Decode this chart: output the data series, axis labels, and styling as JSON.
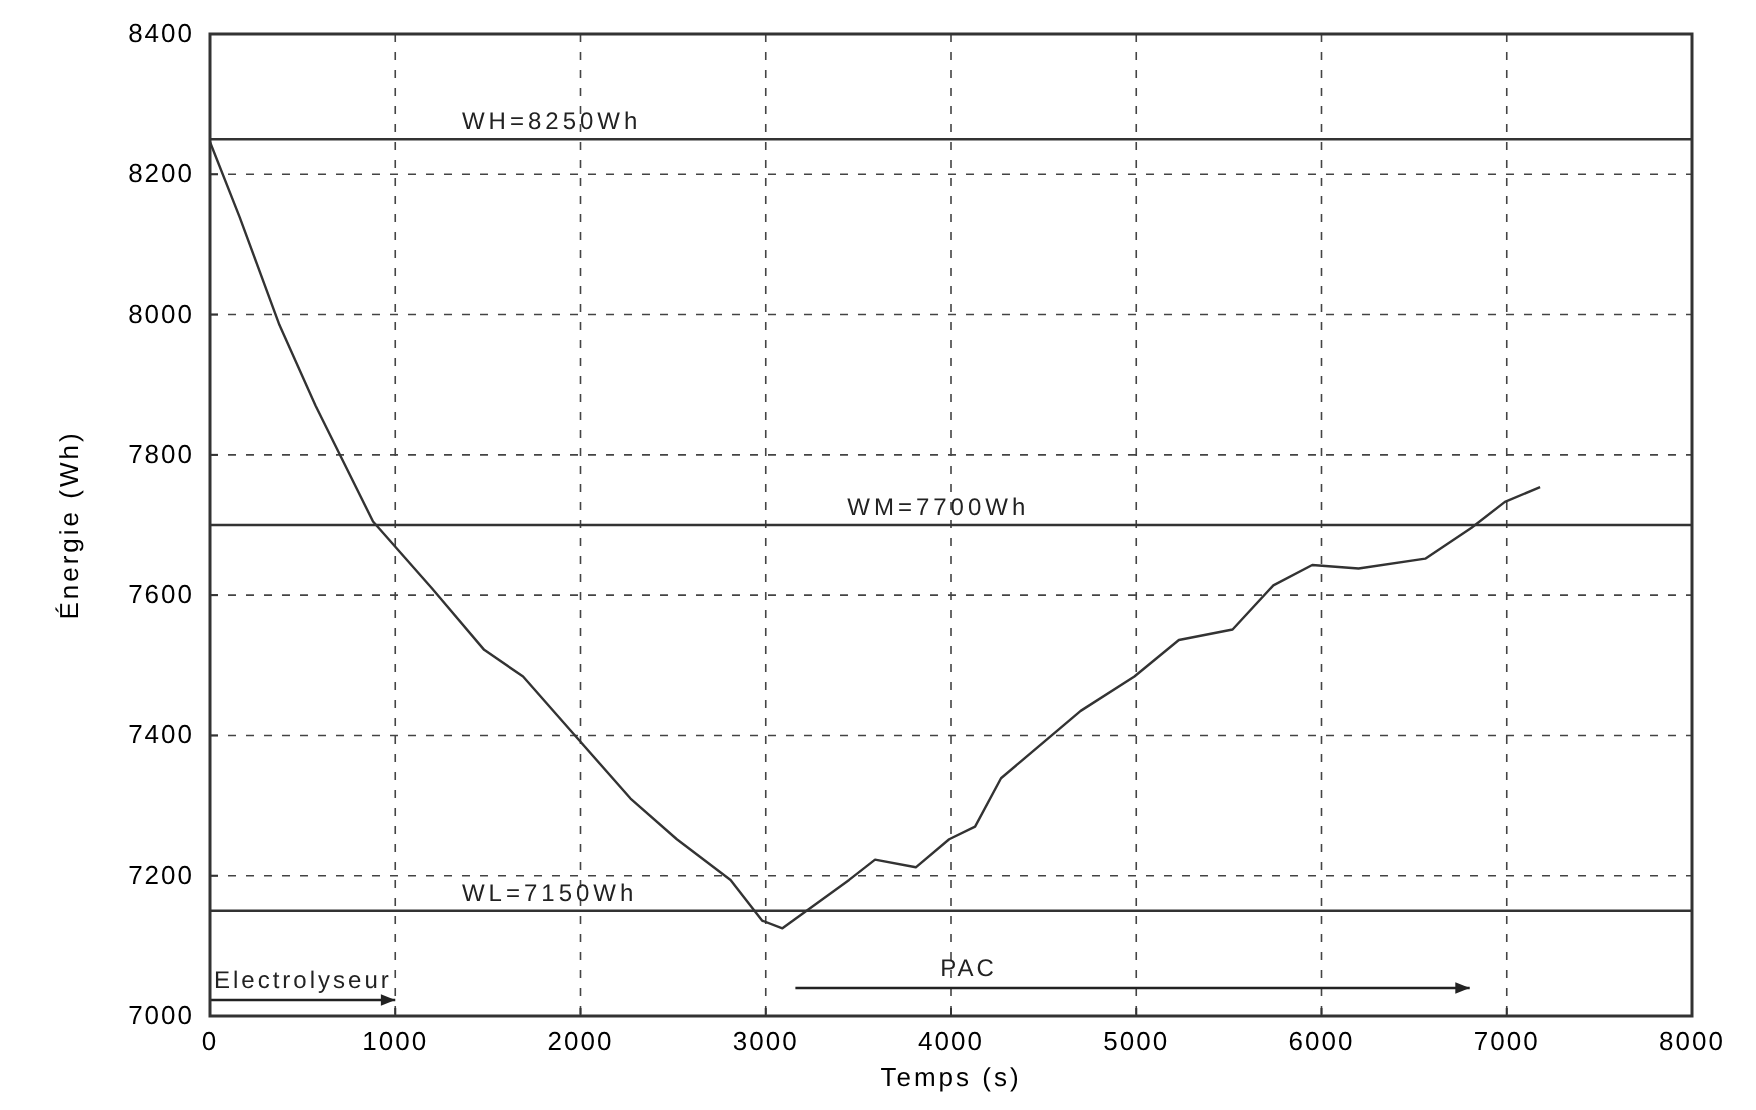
{
  "chart_data": {
    "type": "line",
    "xlabel": "Temps (s)",
    "ylabel": "Énergie (Wh)",
    "xlim": [
      0,
      8000
    ],
    "xticks": [
      0,
      1000,
      2000,
      3000,
      4000,
      5000,
      6000,
      7000,
      8000
    ],
    "ylim": [
      7000,
      8400
    ],
    "yticks": [
      7000,
      7200,
      7400,
      7600,
      7800,
      8000,
      8200,
      8400
    ],
    "grid": true,
    "marker": "none",
    "line_style": "solid",
    "x": [
      0,
      160,
      375,
      570,
      880,
      1200,
      1480,
      1690,
      1950,
      2270,
      2520,
      2810,
      2980,
      3090,
      3450,
      3590,
      3810,
      3990,
      4130,
      4270,
      4700,
      4990,
      5230,
      5520,
      5740,
      5950,
      6200,
      6560,
      6810,
      6990,
      7180
    ],
    "series": [
      {
        "color": "#333333",
        "values": [
          8246,
          8139,
          7985,
          7870,
          7705,
          7609,
          7522,
          7484,
          7406,
          7310,
          7252,
          7194,
          7136,
          7125,
          7194,
          7223,
          7212,
          7252,
          7270,
          7339,
          7435,
          7484,
          7536,
          7551,
          7614,
          7643,
          7638,
          7652,
          7696,
          7733,
          7754
        ]
      }
    ],
    "ref_lines": [
      {
        "axis": "y",
        "value": 8250,
        "label": "WH=8250Wh",
        "color": "#333333",
        "line_style": "solid"
      },
      {
        "axis": "y",
        "value": 7700,
        "label": "WM=7700Wh",
        "color": "#333333",
        "line_style": "solid"
      },
      {
        "axis": "y",
        "value": 7150,
        "label": "WL=7150Wh",
        "color": "#333333",
        "line_style": "solid"
      }
    ],
    "annotations": [
      "Electrolyseur",
      "PAC"
    ]
  }
}
